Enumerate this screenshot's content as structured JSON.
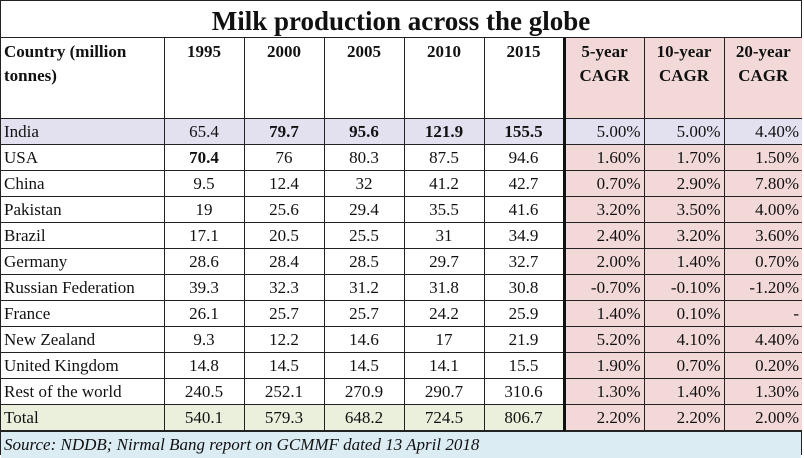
{
  "chart_data": {
    "type": "table",
    "title": "Milk production across the globe",
    "columns": [
      "Country (million tonnes)",
      "1995",
      "2000",
      "2005",
      "2010",
      "2015",
      "5-year CAGR",
      "10-year CAGR",
      "20-year CAGR"
    ],
    "column_lines": [
      [
        "Country (million",
        "tonnes)"
      ],
      [
        "1995"
      ],
      [
        "2000"
      ],
      [
        "2005"
      ],
      [
        "2010"
      ],
      [
        "2015"
      ],
      [
        "5-year",
        "CAGR"
      ],
      [
        "10-year",
        "CAGR"
      ],
      [
        "20-year",
        "CAGR"
      ]
    ],
    "rows": [
      {
        "country": "India",
        "values": [
          "65.4",
          "79.7",
          "95.6",
          "121.9",
          "155.5"
        ],
        "cagr": [
          "5.00%",
          "5.00%",
          "4.40%"
        ],
        "bold": [
          1,
          2,
          3,
          4
        ],
        "highlight": "india"
      },
      {
        "country": "USA",
        "values": [
          "70.4",
          "76",
          "80.3",
          "87.5",
          "94.6"
        ],
        "cagr": [
          "1.60%",
          "1.70%",
          "1.50%"
        ],
        "bold": [
          0
        ]
      },
      {
        "country": "China",
        "values": [
          "9.5",
          "12.4",
          "32",
          "41.2",
          "42.7"
        ],
        "cagr": [
          "0.70%",
          "2.90%",
          "7.80%"
        ],
        "bold": []
      },
      {
        "country": "Pakistan",
        "values": [
          "19",
          "25.6",
          "29.4",
          "35.5",
          "41.6"
        ],
        "cagr": [
          "3.20%",
          "3.50%",
          "4.00%"
        ],
        "bold": []
      },
      {
        "country": "Brazil",
        "values": [
          "17.1",
          "20.5",
          "25.5",
          "31",
          "34.9"
        ],
        "cagr": [
          "2.40%",
          "3.20%",
          "3.60%"
        ],
        "bold": []
      },
      {
        "country": "Germany",
        "values": [
          "28.6",
          "28.4",
          "28.5",
          "29.7",
          "32.7"
        ],
        "cagr": [
          "2.00%",
          "1.40%",
          "0.70%"
        ],
        "bold": []
      },
      {
        "country": "Russian Federation",
        "values": [
          "39.3",
          "32.3",
          "31.2",
          "31.8",
          "30.8"
        ],
        "cagr": [
          "-0.70%",
          "-0.10%",
          "-1.20%"
        ],
        "bold": []
      },
      {
        "country": "France",
        "values": [
          "26.1",
          "25.7",
          "25.7",
          "24.2",
          "25.9"
        ],
        "cagr": [
          "1.40%",
          "0.10%",
          "-"
        ],
        "bold": []
      },
      {
        "country": "New Zealand",
        "values": [
          "9.3",
          "12.2",
          "14.6",
          "17",
          "21.9"
        ],
        "cagr": [
          "5.20%",
          "4.10%",
          "4.40%"
        ],
        "bold": []
      },
      {
        "country": "United Kingdom",
        "values": [
          "14.8",
          "14.5",
          "14.5",
          "14.1",
          "15.5"
        ],
        "cagr": [
          "1.90%",
          "0.70%",
          "0.20%"
        ],
        "bold": []
      },
      {
        "country": "Rest of the world",
        "values": [
          "240.5",
          "252.1",
          "270.9",
          "290.7",
          "310.6"
        ],
        "cagr": [
          "1.30%",
          "1.40%",
          "1.30%"
        ],
        "bold": []
      },
      {
        "country": "Total",
        "values": [
          "540.1",
          "579.3",
          "648.2",
          "724.5",
          "806.7"
        ],
        "cagr": [
          "2.20%",
          "2.20%",
          "2.00%"
        ],
        "bold": [],
        "highlight": "total"
      }
    ],
    "source": "Source: NDDB; Nirmal Bang report on GCMMF dated 13 April 2018",
    "colors": {
      "india_row": "#e3e0ef",
      "cagr_columns": "#f2d9d8",
      "total_row": "#ebf0dd",
      "source_row": "#dbecf3"
    }
  }
}
